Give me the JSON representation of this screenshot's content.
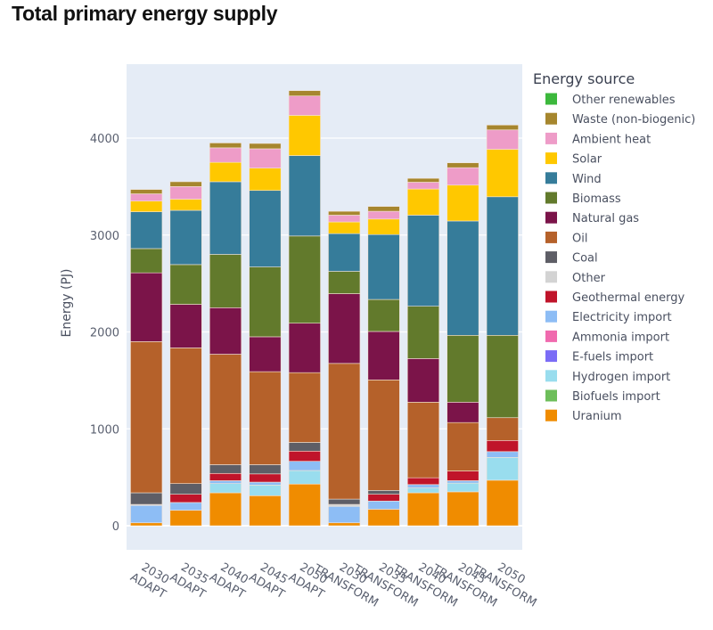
{
  "title": "Total primary energy supply",
  "chart_data": {
    "type": "bar",
    "stacked": true,
    "title": "Total primary energy supply",
    "xlabel": "",
    "ylabel": "Energy (PJ)",
    "ylim": [
      0,
      4600
    ],
    "yticks": [
      0,
      1000,
      2000,
      3000,
      4000
    ],
    "grid": true,
    "legend_title": "Energy source",
    "legend_position": "right",
    "categories": [
      "2030 ADAPT",
      "2035 ADAPT",
      "2040 ADAPT",
      "2045 ADAPT",
      "2050 ADAPT",
      "2030 TRANSFORM",
      "2035 TRANSFORM",
      "2040 TRANSFORM",
      "2045 TRANSFORM",
      "2050 TRANSFORM"
    ],
    "category_lines": [
      [
        "2030",
        "ADAPT"
      ],
      [
        "2035",
        "ADAPT"
      ],
      [
        "2040",
        "ADAPT"
      ],
      [
        "2045",
        "ADAPT"
      ],
      [
        "2050",
        "ADAPT"
      ],
      [
        "2030",
        "TRANSFORM"
      ],
      [
        "2035",
        "TRANSFORM"
      ],
      [
        "2040",
        "TRANSFORM"
      ],
      [
        "2045",
        "TRANSFORM"
      ],
      [
        "2050",
        "TRANSFORM"
      ]
    ],
    "series": [
      {
        "name": "Uranium",
        "color": "#F08C00",
        "values": [
          30,
          160,
          340,
          310,
          430,
          30,
          170,
          340,
          350,
          470
        ]
      },
      {
        "name": "Biofuels import",
        "color": "#6DBE5A",
        "values": [
          0,
          0,
          0,
          0,
          0,
          0,
          0,
          0,
          0,
          0
        ]
      },
      {
        "name": "Hydrogen import",
        "color": "#99DDEE",
        "values": [
          0,
          0,
          95,
          110,
          140,
          0,
          0,
          50,
          90,
          235
        ]
      },
      {
        "name": "E-fuels import",
        "color": "#7B6CF6",
        "values": [
          0,
          0,
          0,
          0,
          0,
          0,
          0,
          0,
          0,
          0
        ]
      },
      {
        "name": "Ammonia import",
        "color": "#F06AAE",
        "values": [
          0,
          0,
          0,
          0,
          0,
          0,
          0,
          0,
          0,
          0
        ]
      },
      {
        "name": "Electricity import",
        "color": "#8DBDF5",
        "values": [
          180,
          80,
          30,
          30,
          95,
          170,
          85,
          35,
          25,
          60
        ]
      },
      {
        "name": "Geothermal energy",
        "color": "#C0142A",
        "values": [
          0,
          85,
          75,
          85,
          105,
          0,
          70,
          70,
          100,
          115
        ]
      },
      {
        "name": "Other",
        "color": "#D3D3D3",
        "values": [
          10,
          0,
          0,
          0,
          0,
          20,
          0,
          0,
          0,
          0
        ]
      },
      {
        "name": "Coal",
        "color": "#5E5E66",
        "values": [
          120,
          110,
          90,
          95,
          90,
          55,
          40,
          0,
          0,
          0
        ]
      },
      {
        "name": "Oil",
        "color": "#B5612A",
        "values": [
          1560,
          1400,
          1140,
          960,
          720,
          1400,
          1140,
          780,
          500,
          235
        ]
      },
      {
        "name": "Natural gas",
        "color": "#7B1449",
        "values": [
          710,
          450,
          480,
          360,
          510,
          720,
          500,
          450,
          210,
          0
        ]
      },
      {
        "name": "Biomass",
        "color": "#627A2C",
        "values": [
          250,
          410,
          550,
          720,
          900,
          230,
          330,
          540,
          690,
          850
        ]
      },
      {
        "name": "Wind",
        "color": "#367C9A",
        "values": [
          380,
          560,
          750,
          790,
          830,
          390,
          670,
          940,
          1180,
          1430
        ]
      },
      {
        "name": "Solar",
        "color": "#FFC800",
        "values": [
          110,
          115,
          200,
          230,
          415,
          120,
          160,
          270,
          370,
          490
        ]
      },
      {
        "name": "Ambient heat",
        "color": "#EE9CC8",
        "values": [
          75,
          130,
          150,
          200,
          200,
          70,
          80,
          70,
          180,
          200
        ]
      },
      {
        "name": "Waste (non-biogenic)",
        "color": "#A6862E",
        "values": [
          45,
          50,
          50,
          55,
          55,
          40,
          50,
          40,
          50,
          50
        ]
      },
      {
        "name": "Other renewables",
        "color": "#3CB83C",
        "values": [
          0,
          0,
          0,
          0,
          0,
          0,
          0,
          0,
          0,
          0
        ]
      }
    ],
    "legend_order": [
      "Other renewables",
      "Waste (non-biogenic)",
      "Ambient heat",
      "Solar",
      "Wind",
      "Biomass",
      "Natural gas",
      "Oil",
      "Coal",
      "Other",
      "Geothermal energy",
      "Electricity import",
      "Ammonia import",
      "E-fuels import",
      "Hydrogen import",
      "Biofuels import",
      "Uranium"
    ],
    "colors": {
      "plot_background": "#E5ECF6",
      "gridline": "#FFFFFF"
    }
  }
}
